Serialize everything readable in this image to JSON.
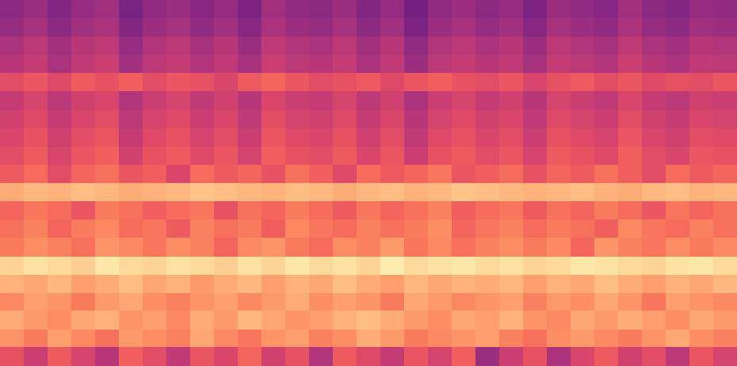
{
  "chart_data": {
    "type": "heatmap",
    "log": "y",
    "tick_labels": false,
    "color": "magma",
    "zlim": [
      -80,
      0
    ],
    "xlim": [
      0,
      31
    ],
    "ylim": [
      64,
      8192
    ],
    "time_bins": [
      0,
      1,
      2,
      3,
      4,
      5,
      6,
      7,
      8,
      9,
      10,
      11,
      12,
      13,
      14,
      15,
      16,
      17,
      18,
      19,
      20,
      21,
      22,
      23,
      24,
      25,
      26,
      27,
      28,
      29,
      30,
      31
    ],
    "freq_bins": [
      64,
      82,
      104,
      133,
      169,
      215,
      274,
      350,
      446,
      568,
      724,
      923,
      1176,
      1499,
      1911,
      2436,
      3104,
      3957,
      5043,
      6428,
      8192
    ],
    "values": [
      [
        -30,
        -36,
        -28,
        -34,
        -40,
        -27,
        -31,
        -38,
        -29,
        -33,
        -26,
        -35,
        -30,
        -41,
        -28,
        -32,
        -37,
        -29,
        -34,
        -27,
        -45,
        -36,
        -30,
        -42,
        -33,
        -28,
        -35,
        -31,
        -39,
        -29,
        -34
      ],
      [
        -18,
        -22,
        -16,
        -20,
        -24,
        -17,
        -19,
        -21,
        -15,
        -20,
        -23,
        -18,
        -16,
        -21,
        -19,
        -14,
        -17,
        -22,
        -20,
        -18,
        -16,
        -21,
        -24,
        -19,
        -17,
        -20,
        -22,
        -18,
        -15,
        -19,
        -21
      ],
      [
        -14,
        -17,
        -19,
        -15,
        -13,
        -18,
        -16,
        -20,
        -14,
        -17,
        -12,
        -15,
        -18,
        -16,
        -13,
        -11,
        -14,
        -17,
        -19,
        -15,
        -16,
        -13,
        -18,
        -20,
        -15,
        -17,
        -14,
        -16,
        -19,
        -15,
        -17
      ],
      [
        -20,
        -16,
        -18,
        -22,
        -17,
        -15,
        -19,
        -21,
        -18,
        -16,
        -20,
        -17,
        -14,
        -19,
        -16,
        -18,
        -22,
        -15,
        -17,
        -20,
        -18,
        -16,
        -21,
        -17,
        -19,
        -15,
        -18,
        -23,
        -16,
        -18,
        -20
      ],
      [
        -13,
        -15,
        -12,
        -16,
        -14,
        -11,
        -15,
        -13,
        -17,
        -14,
        -12,
        -16,
        -13,
        -15,
        -11,
        -14,
        -16,
        -12,
        -15,
        -13,
        -14,
        -12,
        -16,
        -13,
        -15,
        -11,
        -14,
        -16,
        -13,
        -15,
        -12
      ],
      [
        -7,
        -5,
        -6,
        -8,
        -4,
        -6,
        -7,
        -5,
        -6,
        -8,
        -5,
        -7,
        -4,
        -6,
        -5,
        -7,
        -3,
        -6,
        -5,
        -4,
        -6,
        -5,
        -7,
        -6,
        -4,
        -5,
        -6,
        -7,
        -5,
        -4,
        -6
      ],
      [
        -22,
        -19,
        -21,
        -24,
        -18,
        -20,
        -23,
        -19,
        -21,
        -26,
        -20,
        -18,
        -22,
        -25,
        -19,
        -21,
        -17,
        -23,
        -20,
        -24,
        -21,
        -19,
        -22,
        -20,
        -26,
        -18,
        -21,
        -23,
        -19,
        -22,
        -20
      ],
      [
        -24,
        -21,
        -26,
        -22,
        -20,
        -25,
        -23,
        -28,
        -21,
        -24,
        -22,
        -27,
        -20,
        -23,
        -25,
        -21,
        -24,
        -22,
        -19,
        -26,
        -23,
        -21,
        -25,
        -22,
        -24,
        -27,
        -20,
        -23,
        -25,
        -21,
        -24
      ],
      [
        -26,
        -23,
        -25,
        -29,
        -22,
        -24,
        -27,
        -25,
        -23,
        -30,
        -24,
        -26,
        -22,
        -25,
        -28,
        -23,
        -26,
        -24,
        -21,
        -27,
        -25,
        -23,
        -28,
        -24,
        -26,
        -22,
        -25,
        -29,
        -23,
        -26,
        -24
      ],
      [
        -14,
        -12,
        -13,
        -11,
        -12,
        -14,
        -13,
        -12,
        -10,
        -11,
        -12,
        -13,
        -11,
        -12,
        -14,
        -12,
        -11,
        -13,
        -12,
        -10,
        -11,
        -12,
        -13,
        -12,
        -11,
        -13,
        -14,
        -12,
        -11,
        -13,
        -12
      ],
      [
        -28,
        -25,
        -31,
        -26,
        -24,
        -29,
        -27,
        -33,
        -25,
        -28,
        -26,
        -30,
        -24,
        -27,
        -32,
        -25,
        -28,
        -26,
        -23,
        -29,
        -27,
        -25,
        -30,
        -26,
        -28,
        -24,
        -27,
        -31,
        -25,
        -28,
        -26
      ],
      [
        -31,
        -28,
        -33,
        -29,
        -27,
        -35,
        -30,
        -28,
        -32,
        -29,
        -34,
        -27,
        -30,
        -31,
        -28,
        -33,
        -29,
        -36,
        -30,
        -28,
        -31,
        -29,
        -34,
        -28,
        -30,
        -32,
        -27,
        -31,
        -33,
        -29,
        -30
      ],
      [
        -33,
        -30,
        -35,
        -31,
        -29,
        -37,
        -32,
        -30,
        -34,
        -31,
        -36,
        -29,
        -32,
        -33,
        -30,
        -35,
        -31,
        -38,
        -32,
        -30,
        -33,
        -31,
        -36,
        -30,
        -32,
        -34,
        -29,
        -33,
        -35,
        -31,
        -32
      ],
      [
        -35,
        -32,
        -37,
        -33,
        -31,
        -39,
        -34,
        -32,
        -36,
        -33,
        -38,
        -31,
        -34,
        -35,
        -32,
        -37,
        -33,
        -40,
        -34,
        -32,
        -35,
        -33,
        -38,
        -32,
        -34,
        -36,
        -31,
        -35,
        -37,
        -33,
        -34
      ],
      [
        -37,
        -34,
        -39,
        -35,
        -33,
        -41,
        -36,
        -34,
        -38,
        -35,
        -40,
        -33,
        -36,
        -37,
        -34,
        -39,
        -35,
        -42,
        -36,
        -34,
        -37,
        -35,
        -40,
        -34,
        -36,
        -38,
        -33,
        -37,
        -39,
        -35,
        -36
      ],
      [
        -31,
        -29,
        -32,
        -28,
        -30,
        -27,
        -31,
        -29,
        -30,
        -33,
        -28,
        -26,
        -29,
        -31,
        -30,
        -28,
        -32,
        -29,
        -27,
        -30,
        -31,
        -29,
        -33,
        -30,
        -28,
        -31,
        -29,
        -32,
        -30,
        -31,
        -29
      ],
      [
        -40,
        -37,
        -42,
        -38,
        -36,
        -44,
        -39,
        -37,
        -41,
        -38,
        -43,
        -36,
        -39,
        -40,
        -37,
        -42,
        -38,
        -45,
        -39,
        -37,
        -40,
        -38,
        -43,
        -37,
        -39,
        -41,
        -36,
        -40,
        -42,
        -38,
        -39
      ],
      [
        -42,
        -39,
        -44,
        -40,
        -38,
        -46,
        -41,
        -39,
        -43,
        -40,
        -45,
        -38,
        -41,
        -42,
        -39,
        -44,
        -40,
        -47,
        -41,
        -39,
        -42,
        -40,
        -45,
        -39,
        -41,
        -43,
        -38,
        -42,
        -44,
        -40,
        -41
      ],
      [
        -46,
        -43,
        -48,
        -44,
        -42,
        -50,
        -45,
        -43,
        -47,
        -44,
        -49,
        -42,
        -45,
        -46,
        -43,
        -48,
        -44,
        -51,
        -45,
        -43,
        -46,
        -44,
        -49,
        -43,
        -45,
        -47,
        -42,
        -46,
        -48,
        -44,
        -45
      ],
      [
        -48,
        -45,
        -50,
        -46,
        -44,
        -52,
        -47,
        -45,
        -49,
        -46,
        -51,
        -44,
        -47,
        -48,
        -45,
        -50,
        -46,
        -53,
        -47,
        -45,
        -48,
        -46,
        -51,
        -45,
        -47,
        -49,
        -44,
        -48,
        -50,
        -46,
        -47
      ]
    ]
  }
}
